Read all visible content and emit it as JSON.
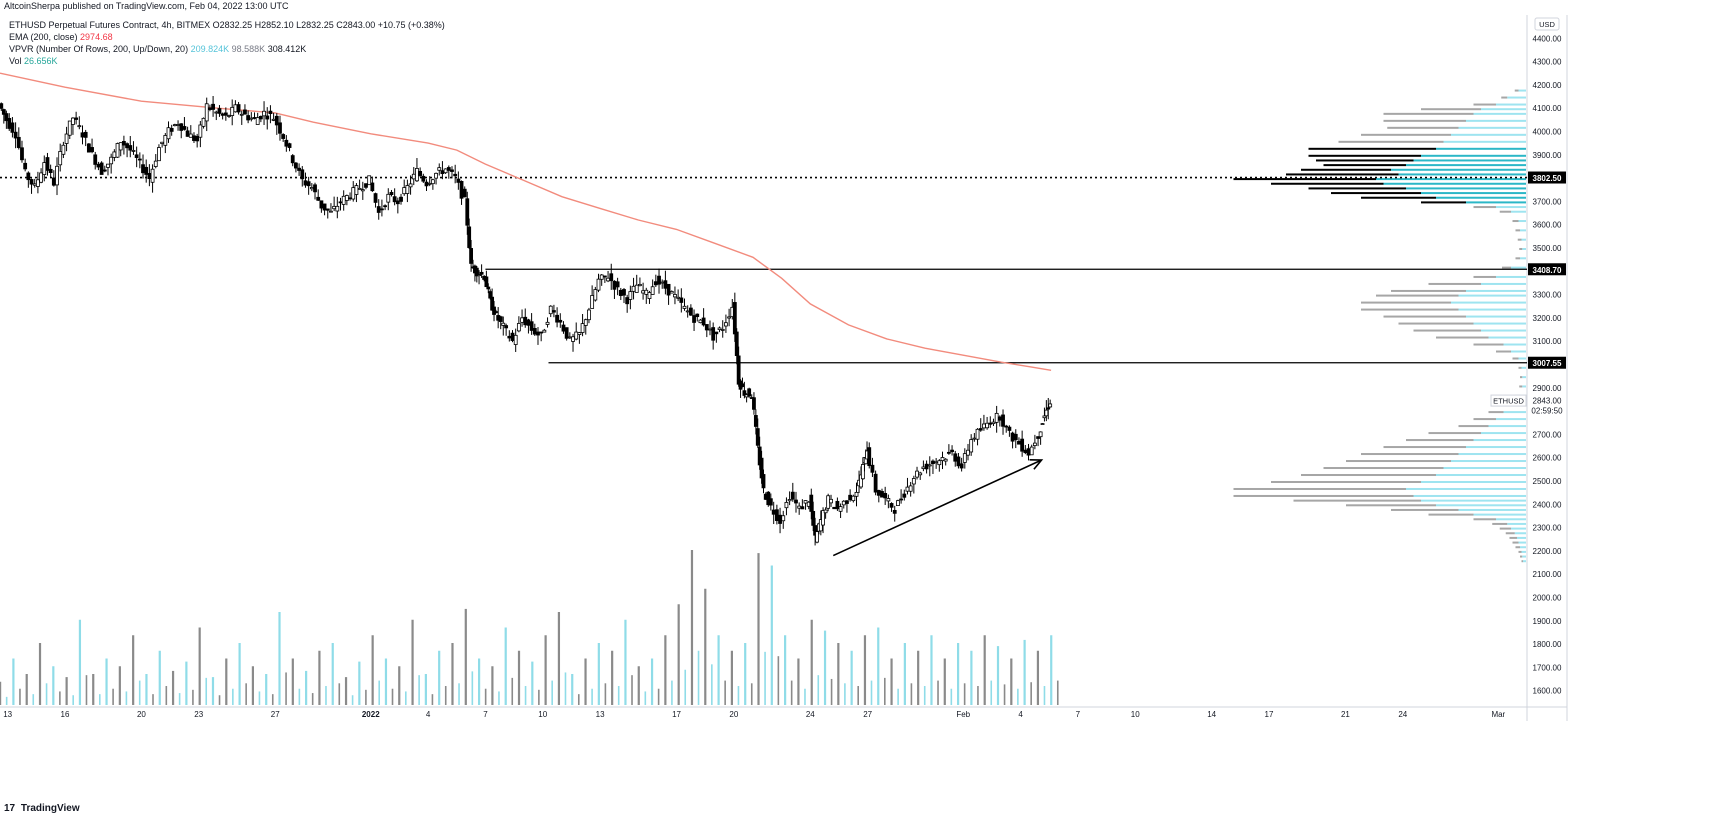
{
  "published_line": "AltcoinSherpa published on TradingView.com, Feb 04, 2022 13:00 UTC",
  "legend": {
    "symbol_line": {
      "name": "ETHUSD Perpetual Futures Contract, 4h, BITMEX",
      "ohlc": "O2832.25  H2852.10  L2832.25  C2843.00  +10.75 (+0.38%)"
    },
    "ema": {
      "label": "EMA (200, close)",
      "value": "2974.68"
    },
    "vpvr": {
      "label": "VPVR (Number Of Rows, 200, Up/Down, 20)",
      "up": "209.824K",
      "down": "98.588K",
      "total": "308.412K"
    },
    "vol": {
      "label": "Vol",
      "value": "26.656K"
    }
  },
  "brand": {
    "logo": "17",
    "name": "TradingView"
  },
  "currency_button": "USD",
  "last_price": {
    "symbol": "ETHUSD",
    "price": "2843.00",
    "countdown": "02:59:50"
  },
  "colors": {
    "ema": "#f28b7d",
    "volume_up": "#8fdce8",
    "volume_down": "#8a8a8a",
    "vp_up": "#9ee4f0",
    "vp_down": "#a6a6a6",
    "value_area_up": "#2bb7c7",
    "value_area_down": "#000000",
    "lines": "#000000"
  },
  "chart_data": {
    "type": "candlestick",
    "symbol": "ETHUSD",
    "timeframe": "4h",
    "y_axis": {
      "ticks": [
        "4400.00",
        "4300.00",
        "4200.00",
        "4100.00",
        "4000.00",
        "3900.00",
        "3700.00",
        "3600.00",
        "3500.00",
        "3300.00",
        "3200.00",
        "3100.00",
        "2900.00",
        "2700.00",
        "2600.00",
        "2500.00",
        "2400.00",
        "2300.00",
        "2200.00",
        "2100.00",
        "2000.00",
        "1900.00",
        "1800.00",
        "1700.00",
        "1600.00"
      ],
      "range": [
        1530,
        4500
      ]
    },
    "x_axis": {
      "ticks": [
        {
          "label": "13",
          "day": 13
        },
        {
          "label": "16",
          "day": 16
        },
        {
          "label": "20",
          "day": 20
        },
        {
          "label": "23",
          "day": 23
        },
        {
          "label": "27",
          "day": 27
        },
        {
          "label": "2022",
          "day": 32,
          "bold": true
        },
        {
          "label": "4",
          "day": 35
        },
        {
          "label": "7",
          "day": 38
        },
        {
          "label": "10",
          "day": 41
        },
        {
          "label": "13",
          "day": 44
        },
        {
          "label": "17",
          "day": 48
        },
        {
          "label": "20",
          "day": 51
        },
        {
          "label": "24",
          "day": 55
        },
        {
          "label": "27",
          "day": 58
        },
        {
          "label": "Feb",
          "day": 63
        },
        {
          "label": "4",
          "day": 66
        },
        {
          "label": "7",
          "day": 69
        },
        {
          "label": "10",
          "day": 72
        },
        {
          "label": "14",
          "day": 76
        },
        {
          "label": "17",
          "day": 79
        },
        {
          "label": "21",
          "day": 83
        },
        {
          "label": "24",
          "day": 86
        },
        {
          "label": "Mar",
          "day": 91
        }
      ],
      "range_days": [
        12.6,
        92.5
      ]
    },
    "horizontal_levels": [
      {
        "price": 3802.5,
        "label": "3802.50",
        "style": "dotted",
        "from_day": 12.6
      },
      {
        "price": 3408.7,
        "label": "3408.70",
        "style": "solid",
        "from_day": 38
      },
      {
        "price": 3007.55,
        "label": "3007.55",
        "style": "solid",
        "from_day": 41.3
      }
    ],
    "arrow": {
      "from": {
        "day": 56.2,
        "price": 2180
      },
      "to": {
        "day": 67.1,
        "price": 2590
      }
    },
    "close_path": [
      [
        12.6,
        4120
      ],
      [
        13.0,
        4050
      ],
      [
        13.5,
        3990
      ],
      [
        14.0,
        3820
      ],
      [
        14.5,
        3760
      ],
      [
        15.0,
        3870
      ],
      [
        15.5,
        3780
      ],
      [
        16.0,
        3960
      ],
      [
        16.5,
        4060
      ],
      [
        17.0,
        3990
      ],
      [
        17.5,
        3900
      ],
      [
        18.0,
        3830
      ],
      [
        18.5,
        3880
      ],
      [
        19.0,
        3960
      ],
      [
        19.5,
        3920
      ],
      [
        20.0,
        3860
      ],
      [
        20.5,
        3800
      ],
      [
        21.0,
        3930
      ],
      [
        21.5,
        4000
      ],
      [
        22.0,
        4040
      ],
      [
        22.5,
        3990
      ],
      [
        23.0,
        3960
      ],
      [
        23.5,
        4110
      ],
      [
        24.0,
        4080
      ],
      [
        24.5,
        4060
      ],
      [
        25.0,
        4100
      ],
      [
        25.5,
        4070
      ],
      [
        26.0,
        4050
      ],
      [
        26.5,
        4080
      ],
      [
        27.0,
        4060
      ],
      [
        27.5,
        3980
      ],
      [
        28.0,
        3880
      ],
      [
        28.5,
        3790
      ],
      [
        29.0,
        3760
      ],
      [
        29.5,
        3680
      ],
      [
        30.0,
        3650
      ],
      [
        30.5,
        3700
      ],
      [
        31.0,
        3730
      ],
      [
        31.5,
        3760
      ],
      [
        32.0,
        3790
      ],
      [
        32.5,
        3650
      ],
      [
        33.0,
        3720
      ],
      [
        33.5,
        3700
      ],
      [
        34.0,
        3760
      ],
      [
        34.5,
        3830
      ],
      [
        35.0,
        3780
      ],
      [
        35.5,
        3820
      ],
      [
        36.0,
        3840
      ],
      [
        36.5,
        3800
      ],
      [
        37.0,
        3700
      ],
      [
        37.3,
        3420
      ],
      [
        37.6,
        3400
      ],
      [
        38.0,
        3380
      ],
      [
        38.3,
        3270
      ],
      [
        38.6,
        3210
      ],
      [
        39.0,
        3160
      ],
      [
        39.5,
        3100
      ],
      [
        40.0,
        3200
      ],
      [
        40.5,
        3150
      ],
      [
        41.0,
        3120
      ],
      [
        41.5,
        3240
      ],
      [
        42.0,
        3180
      ],
      [
        42.5,
        3100
      ],
      [
        43.0,
        3130
      ],
      [
        43.5,
        3240
      ],
      [
        44.0,
        3360
      ],
      [
        44.5,
        3380
      ],
      [
        45.0,
        3320
      ],
      [
        45.5,
        3280
      ],
      [
        46.0,
        3340
      ],
      [
        46.5,
        3300
      ],
      [
        47.0,
        3360
      ],
      [
        47.5,
        3330
      ],
      [
        48.0,
        3290
      ],
      [
        48.5,
        3240
      ],
      [
        49.0,
        3200
      ],
      [
        49.5,
        3180
      ],
      [
        50.0,
        3120
      ],
      [
        50.5,
        3160
      ],
      [
        51.0,
        3250
      ],
      [
        51.3,
        2930
      ],
      [
        51.6,
        2880
      ],
      [
        52.0,
        2870
      ],
      [
        52.3,
        2640
      ],
      [
        52.6,
        2460
      ],
      [
        53.0,
        2390
      ],
      [
        53.5,
        2330
      ],
      [
        54.0,
        2440
      ],
      [
        54.5,
        2380
      ],
      [
        55.0,
        2420
      ],
      [
        55.3,
        2250
      ],
      [
        55.6,
        2330
      ],
      [
        56.0,
        2420
      ],
      [
        56.5,
        2380
      ],
      [
        57.0,
        2420
      ],
      [
        57.5,
        2460
      ],
      [
        57.8,
        2560
      ],
      [
        58.0,
        2640
      ],
      [
        58.5,
        2460
      ],
      [
        59.0,
        2420
      ],
      [
        59.5,
        2380
      ],
      [
        60.0,
        2450
      ],
      [
        60.5,
        2520
      ],
      [
        61.0,
        2560
      ],
      [
        61.5,
        2580
      ],
      [
        62.0,
        2600
      ],
      [
        62.5,
        2620
      ],
      [
        63.0,
        2560
      ],
      [
        63.5,
        2680
      ],
      [
        64.0,
        2720
      ],
      [
        64.5,
        2760
      ],
      [
        65.0,
        2780
      ],
      [
        65.5,
        2700
      ],
      [
        66.0,
        2660
      ],
      [
        66.5,
        2620
      ],
      [
        67.0,
        2700
      ],
      [
        67.3,
        2780
      ],
      [
        67.6,
        2843
      ]
    ],
    "ema_path": [
      [
        12.6,
        4250
      ],
      [
        16.0,
        4190
      ],
      [
        20.0,
        4130
      ],
      [
        24.0,
        4100
      ],
      [
        27.0,
        4080
      ],
      [
        29.0,
        4040
      ],
      [
        32.0,
        3990
      ],
      [
        35.0,
        3950
      ],
      [
        36.5,
        3920
      ],
      [
        38.0,
        3860
      ],
      [
        40.0,
        3790
      ],
      [
        42.0,
        3720
      ],
      [
        44.0,
        3670
      ],
      [
        46.0,
        3620
      ],
      [
        48.0,
        3580
      ],
      [
        50.0,
        3520
      ],
      [
        52.0,
        3460
      ],
      [
        53.5,
        3370
      ],
      [
        55.0,
        3260
      ],
      [
        57.0,
        3170
      ],
      [
        59.0,
        3110
      ],
      [
        61.0,
        3070
      ],
      [
        63.0,
        3040
      ],
      [
        65.0,
        3010
      ],
      [
        66.5,
        2990
      ],
      [
        67.6,
        2975
      ]
    ],
    "volume": {
      "axis_label": "Vol",
      "series": [
        [
          0.15,
          0
        ],
        [
          0.3,
          1
        ],
        [
          0.2,
          0
        ],
        [
          0.4,
          0
        ],
        [
          0.25,
          1
        ],
        [
          0.18,
          0
        ],
        [
          0.55,
          1
        ],
        [
          0.2,
          0
        ],
        [
          0.3,
          1
        ],
        [
          0.25,
          0
        ],
        [
          0.45,
          0
        ],
        [
          0.2,
          1
        ],
        [
          0.35,
          1
        ],
        [
          0.22,
          0
        ],
        [
          0.28,
          1
        ],
        [
          0.5,
          0
        ],
        [
          0.18,
          1
        ],
        [
          0.3,
          0
        ],
        [
          0.4,
          1
        ],
        [
          0.25,
          0
        ],
        [
          0.2,
          1
        ],
        [
          0.6,
          1
        ],
        [
          0.3,
          0
        ],
        [
          0.22,
          1
        ],
        [
          0.35,
          0
        ],
        [
          0.4,
          1
        ],
        [
          0.18,
          0
        ],
        [
          0.28,
          1
        ],
        [
          0.45,
          0
        ],
        [
          0.3,
          1
        ],
        [
          0.25,
          0
        ],
        [
          0.55,
          0
        ],
        [
          0.2,
          1
        ],
        [
          0.35,
          1
        ],
        [
          0.4,
          0
        ],
        [
          0.62,
          0
        ],
        [
          0.3,
          1
        ],
        [
          0.25,
          0
        ],
        [
          0.5,
          1
        ],
        [
          0.35,
          0
        ],
        [
          0.28,
          1
        ],
        [
          0.45,
          0
        ],
        [
          0.6,
          0
        ],
        [
          0.2,
          1
        ],
        [
          0.3,
          0
        ],
        [
          0.4,
          1
        ],
        [
          0.35,
          0
        ],
        [
          0.55,
          1
        ],
        [
          0.25,
          0
        ],
        [
          0.3,
          1
        ],
        [
          0.45,
          0
        ],
        [
          0.65,
          0
        ],
        [
          1.0,
          0
        ],
        [
          0.75,
          0
        ],
        [
          0.45,
          1
        ],
        [
          0.35,
          0
        ],
        [
          0.4,
          1
        ],
        [
          0.98,
          0
        ],
        [
          0.9,
          1
        ],
        [
          0.45,
          1
        ],
        [
          0.3,
          0
        ],
        [
          0.55,
          0
        ],
        [
          0.48,
          1
        ],
        [
          0.4,
          0
        ],
        [
          0.35,
          1
        ],
        [
          0.45,
          0
        ],
        [
          0.5,
          1
        ],
        [
          0.3,
          0
        ],
        [
          0.4,
          1
        ],
        [
          0.35,
          0
        ],
        [
          0.45,
          1
        ],
        [
          0.3,
          0
        ],
        [
          0.4,
          1
        ],
        [
          0.35,
          1
        ],
        [
          0.45,
          0
        ],
        [
          0.38,
          1
        ],
        [
          0.3,
          0
        ],
        [
          0.42,
          1
        ],
        [
          0.35,
          0
        ],
        [
          0.45,
          1
        ]
      ]
    },
    "volume_profile": {
      "rows": [
        [
          4180,
          10,
          5
        ],
        [
          4150,
          25,
          8
        ],
        [
          4120,
          40,
          30
        ],
        [
          4100,
          60,
          80
        ],
        [
          4080,
          70,
          120
        ],
        [
          4050,
          80,
          110
        ],
        [
          4020,
          90,
          95
        ],
        [
          3990,
          100,
          120
        ],
        [
          3960,
          110,
          140
        ],
        [
          3930,
          120,
          170
        ],
        [
          3900,
          140,
          150
        ],
        [
          3880,
          150,
          130
        ],
        [
          3860,
          160,
          110
        ],
        [
          3840,
          180,
          120
        ],
        [
          3820,
          170,
          150
        ],
        [
          3800,
          200,
          190
        ],
        [
          3780,
          190,
          150
        ],
        [
          3760,
          160,
          130
        ],
        [
          3740,
          140,
          120
        ],
        [
          3720,
          120,
          100
        ],
        [
          3700,
          80,
          60
        ],
        [
          3680,
          40,
          30
        ],
        [
          3660,
          20,
          15
        ],
        [
          3620,
          10,
          8
        ],
        [
          3580,
          8,
          6
        ],
        [
          3540,
          6,
          5
        ],
        [
          3500,
          5,
          4
        ],
        [
          3460,
          8,
          6
        ],
        [
          3420,
          20,
          12
        ],
        [
          3380,
          40,
          30
        ],
        [
          3350,
          60,
          70
        ],
        [
          3320,
          80,
          100
        ],
        [
          3300,
          90,
          110
        ],
        [
          3270,
          100,
          120
        ],
        [
          3240,
          90,
          130
        ],
        [
          3210,
          80,
          110
        ],
        [
          3180,
          70,
          100
        ],
        [
          3150,
          60,
          90
        ],
        [
          3120,
          50,
          70
        ],
        [
          3090,
          30,
          40
        ],
        [
          3060,
          20,
          20
        ],
        [
          3030,
          10,
          8
        ],
        [
          2990,
          6,
          4
        ],
        [
          2950,
          5,
          3
        ],
        [
          2910,
          5,
          4
        ],
        [
          2870,
          8,
          6
        ],
        [
          2830,
          15,
          12
        ],
        [
          2800,
          30,
          20
        ],
        [
          2770,
          40,
          30
        ],
        [
          2740,
          50,
          40
        ],
        [
          2710,
          60,
          70
        ],
        [
          2680,
          70,
          90
        ],
        [
          2650,
          80,
          110
        ],
        [
          2620,
          90,
          130
        ],
        [
          2590,
          100,
          140
        ],
        [
          2560,
          110,
          160
        ],
        [
          2530,
          120,
          180
        ],
        [
          2500,
          140,
          200
        ],
        [
          2470,
          160,
          230
        ],
        [
          2440,
          150,
          240
        ],
        [
          2420,
          140,
          170
        ],
        [
          2400,
          120,
          120
        ],
        [
          2380,
          90,
          90
        ],
        [
          2360,
          70,
          60
        ],
        [
          2340,
          40,
          30
        ],
        [
          2320,
          25,
          20
        ],
        [
          2300,
          20,
          15
        ],
        [
          2280,
          15,
          12
        ],
        [
          2260,
          12,
          10
        ],
        [
          2240,
          10,
          8
        ],
        [
          2220,
          8,
          6
        ],
        [
          2200,
          6,
          4
        ],
        [
          2180,
          5,
          3
        ],
        [
          2160,
          4,
          2
        ]
      ],
      "value_area": {
        "from": 3700,
        "to": 3950
      }
    }
  }
}
